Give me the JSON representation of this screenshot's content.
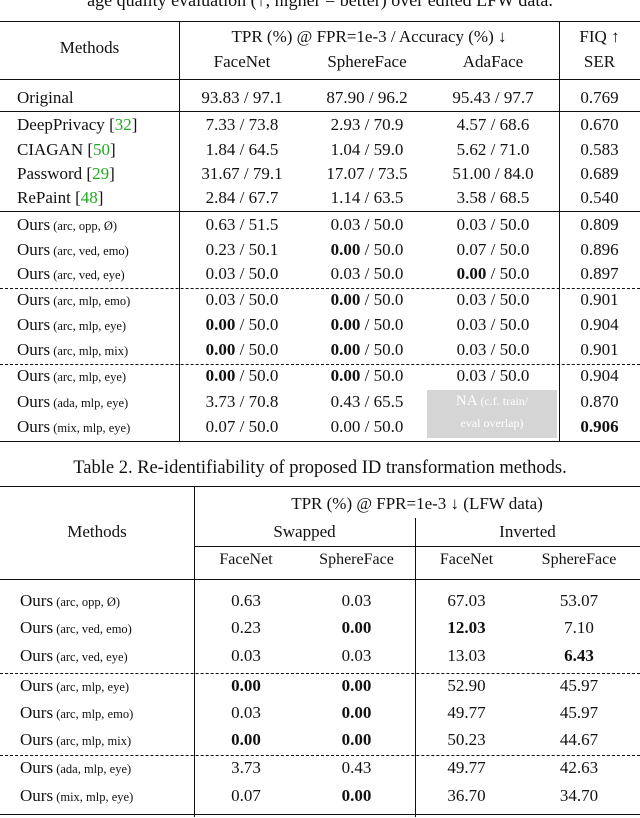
{
  "top_caption": "age quality evaluation (↑, higher = better) over edited LFW data.",
  "table1": {
    "header": {
      "methods": "Methods",
      "group": "TPR (%) @ FPR=1e-3 / Accuracy (%) ↓",
      "fiq": "FIQ ↑",
      "cols": [
        "FaceNet",
        "SphereFace",
        "AdaFace"
      ],
      "ser": "SER"
    },
    "rows": [
      {
        "name": "Original",
        "cite": "",
        "sub": "",
        "v": [
          "93.83 / 97.1",
          "87.90 / 96.2",
          "95.43 / 97.7",
          "0.769"
        ],
        "bold": []
      },
      {
        "name": "DeepPrivacy",
        "cite": "32",
        "sub": "",
        "v": [
          "7.33 / 73.8",
          "2.93 / 70.9",
          "4.57 / 68.6",
          "0.670"
        ],
        "bold": []
      },
      {
        "name": "CIAGAN",
        "cite": "50",
        "sub": "",
        "v": [
          "1.84 / 64.5",
          "1.04 / 59.0",
          "5.62 / 71.0",
          "0.583"
        ],
        "bold": []
      },
      {
        "name": "Password",
        "cite": "29",
        "sub": "",
        "v": [
          "31.67 / 79.1",
          "17.07 / 73.5",
          "51.00 / 84.0",
          "0.689"
        ],
        "bold": []
      },
      {
        "name": "RePaint",
        "cite": "48",
        "sub": "",
        "v": [
          "2.84 / 67.7",
          "1.14 / 63.5",
          "3.58 / 68.5",
          "0.540"
        ],
        "bold": []
      },
      {
        "name": "Ours",
        "cite": "",
        "sub": "(arc,  opp,     Ø)",
        "v": [
          "0.63 / 51.5",
          "0.03 / 50.0",
          "0.03 / 50.0",
          "0.809"
        ],
        "bold": []
      },
      {
        "name": "Ours",
        "cite": "",
        "sub": "(arc,  ved, emo)",
        "v": [
          "0.23 / 50.1",
          "0.00 / 50.0",
          "0.07 / 50.0",
          "0.896"
        ],
        "bold": [
          1
        ]
      },
      {
        "name": "Ours",
        "cite": "",
        "sub": "(arc,  ved,  eye)",
        "v": [
          "0.03 / 50.0",
          "0.03 / 50.0",
          "0.00 / 50.0",
          "0.897"
        ],
        "bold": [
          2
        ]
      },
      {
        "name": "Ours",
        "cite": "",
        "sub": "(arc,  mlp, emo)",
        "v": [
          "0.03 / 50.0",
          "0.00 / 50.0",
          "0.03 / 50.0",
          "0.901"
        ],
        "bold": [
          1
        ]
      },
      {
        "name": "Ours",
        "cite": "",
        "sub": "(arc,  mlp,  eye)",
        "v": [
          "0.00 / 50.0",
          "0.00 / 50.0",
          "0.03 / 50.0",
          "0.904"
        ],
        "bold": [
          0,
          1
        ]
      },
      {
        "name": "Ours",
        "cite": "",
        "sub": "(arc,  mlp, mix)",
        "v": [
          "0.00 / 50.0",
          "0.00 / 50.0",
          "0.03 / 50.0",
          "0.901"
        ],
        "bold": [
          0,
          1
        ]
      },
      {
        "name": "Ours",
        "cite": "",
        "sub": "(arc,  mlp,  eye)",
        "v": [
          "0.00 / 50.0",
          "0.00 / 50.0",
          "0.03 / 50.0",
          "0.904"
        ],
        "bold": [
          0,
          1
        ]
      },
      {
        "name": "Ours",
        "cite": "",
        "sub": "(ada,  mlp,  eye)",
        "v": [
          "3.73 / 70.8",
          "0.43 / 65.5",
          "",
          "0.870"
        ],
        "bold": []
      },
      {
        "name": "Ours",
        "cite": "",
        "sub": "(mix, mlp,  eye)",
        "v": [
          "0.07 / 50.0",
          "0.00 / 50.0",
          "",
          "0.906"
        ],
        "bold": [
          3
        ]
      }
    ],
    "na_line1": "NA",
    "na_line1_small": "(c.f. train/",
    "na_line2": "eval overlap)"
  },
  "table2": {
    "caption": "Table 2. Re-identifiability of proposed ID transformation methods.",
    "header": {
      "methods": "Methods",
      "group": "TPR (%) @ FPR=1e-3 ↓ (LFW data)",
      "swapped": "Swapped",
      "inverted": "Inverted",
      "cols": [
        "FaceNet",
        "SphereFace",
        "FaceNet",
        "SphereFace"
      ]
    },
    "rows": [
      {
        "sub": "(arc,  opp,     Ø)",
        "v": [
          "0.63",
          "0.03",
          "67.03",
          "53.07"
        ],
        "bold": []
      },
      {
        "sub": "(arc,  ved, emo)",
        "v": [
          "0.23",
          "0.00",
          "12.03",
          "7.10"
        ],
        "bold": [
          1,
          2
        ]
      },
      {
        "sub": "(arc,  ved,  eye)",
        "v": [
          "0.03",
          "0.03",
          "13.03",
          "6.43"
        ],
        "bold": [
          3
        ]
      },
      {
        "sub": "(arc,  mlp,  eye)",
        "v": [
          "0.00",
          "0.00",
          "52.90",
          "45.97"
        ],
        "bold": [
          0,
          1
        ]
      },
      {
        "sub": "(arc,  mlp, emo)",
        "v": [
          "0.03",
          "0.00",
          "49.77",
          "45.97"
        ],
        "bold": [
          1
        ]
      },
      {
        "sub": "(arc,  mlp, mix)",
        "v": [
          "0.00",
          "0.00",
          "50.23",
          "44.67"
        ],
        "bold": [
          0,
          1
        ]
      },
      {
        "sub": "(ada,  mlp,  eye)",
        "v": [
          "3.73",
          "0.43",
          "49.77",
          "42.63"
        ],
        "bold": []
      },
      {
        "sub": "(mix, mlp,  eye)",
        "v": [
          "0.07",
          "0.00",
          "36.70",
          "34.70"
        ],
        "bold": [
          1
        ]
      }
    ],
    "ours_label": "Ours"
  },
  "colors": {
    "cite": "#22a822",
    "na_bg": "#d5d5d5"
  }
}
